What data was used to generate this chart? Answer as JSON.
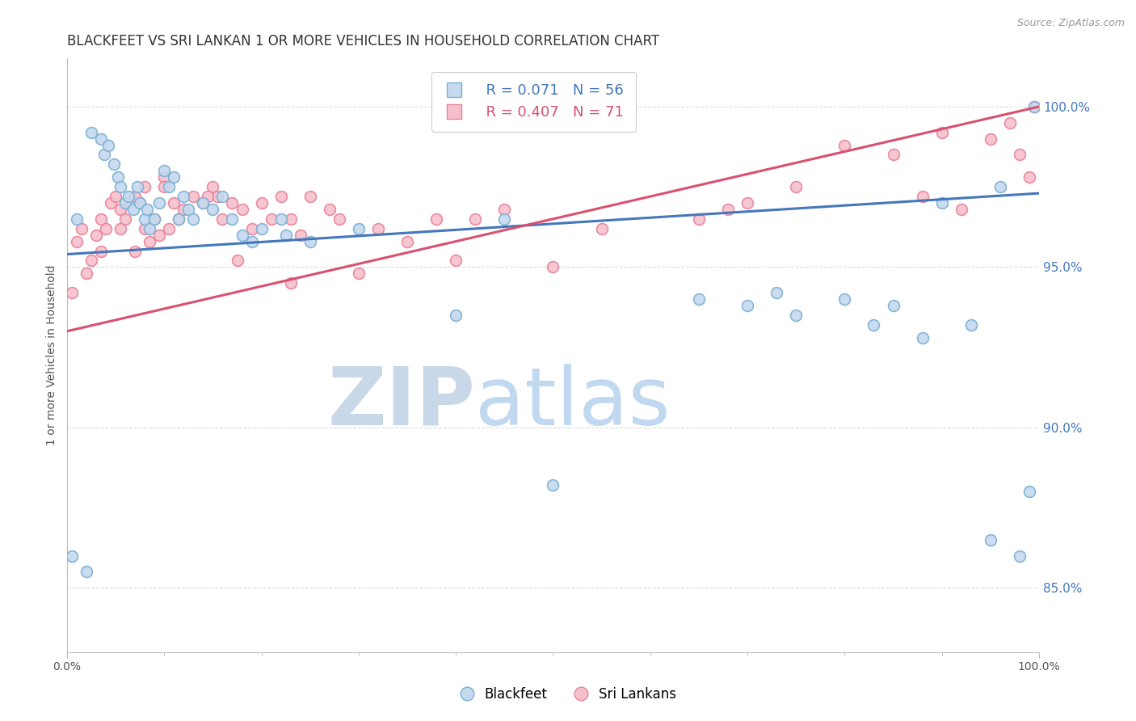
{
  "title": "BLACKFEET VS SRI LANKAN 1 OR MORE VEHICLES IN HOUSEHOLD CORRELATION CHART",
  "source_text": "Source: ZipAtlas.com",
  "ylabel": "1 or more Vehicles in Household",
  "xlabel": "",
  "legend_labels": [
    "Blackfeet",
    "Sri Lankans"
  ],
  "blue_color": "#c5d9ef",
  "pink_color": "#f5c0cc",
  "blue_edge_color": "#7bafd4",
  "pink_edge_color": "#e8829a",
  "blue_line_color": "#4477bb",
  "pink_line_color": "#d95070",
  "blue_R": 0.071,
  "blue_N": 56,
  "pink_R": 0.407,
  "pink_N": 71,
  "blue_scatter_x": [
    1.0,
    2.5,
    3.5,
    3.8,
    4.2,
    4.8,
    5.2,
    5.5,
    6.0,
    6.3,
    6.8,
    7.2,
    7.5,
    8.0,
    8.2,
    8.5,
    9.0,
    9.5,
    10.0,
    10.5,
    11.0,
    11.5,
    12.0,
    12.5,
    13.0,
    14.0,
    15.0,
    16.0,
    17.0,
    18.0,
    19.0,
    20.0,
    22.0,
    22.5,
    25.0,
    30.0,
    40.0,
    45.0,
    50.0,
    65.0,
    70.0,
    73.0,
    75.0,
    80.0,
    83.0,
    85.0,
    88.0,
    90.0,
    93.0,
    95.0,
    96.0,
    98.0,
    99.0,
    99.5,
    0.5,
    2.0
  ],
  "blue_scatter_y": [
    96.5,
    99.2,
    99.0,
    98.5,
    98.8,
    98.2,
    97.8,
    97.5,
    97.0,
    97.2,
    96.8,
    97.5,
    97.0,
    96.5,
    96.8,
    96.2,
    96.5,
    97.0,
    98.0,
    97.5,
    97.8,
    96.5,
    97.2,
    96.8,
    96.5,
    97.0,
    96.8,
    97.2,
    96.5,
    96.0,
    95.8,
    96.2,
    96.5,
    96.0,
    95.8,
    96.2,
    93.5,
    96.5,
    88.2,
    94.0,
    93.8,
    94.2,
    93.5,
    94.0,
    93.2,
    93.8,
    92.8,
    97.0,
    93.2,
    86.5,
    97.5,
    86.0,
    88.0,
    100.0,
    86.0,
    85.5
  ],
  "pink_scatter_x": [
    0.5,
    1.0,
    1.5,
    2.0,
    2.5,
    3.0,
    3.5,
    4.0,
    4.5,
    5.0,
    5.5,
    6.0,
    6.5,
    7.0,
    7.5,
    8.0,
    8.5,
    9.0,
    9.5,
    10.0,
    10.5,
    11.0,
    11.5,
    12.0,
    13.0,
    14.0,
    15.0,
    15.5,
    16.0,
    17.0,
    18.0,
    19.0,
    20.0,
    21.0,
    22.0,
    23.0,
    24.0,
    25.0,
    27.0,
    28.0,
    30.0,
    32.0,
    35.0,
    38.0,
    40.0,
    42.0,
    45.0,
    50.0,
    55.0,
    65.0,
    68.0,
    70.0,
    75.0,
    80.0,
    85.0,
    88.0,
    90.0,
    92.0,
    95.0,
    97.0,
    98.0,
    99.0,
    99.5,
    3.5,
    5.5,
    7.0,
    8.0,
    10.0,
    14.5,
    17.5,
    23.0
  ],
  "pink_scatter_y": [
    94.2,
    95.8,
    96.2,
    94.8,
    95.2,
    96.0,
    96.5,
    96.2,
    97.0,
    97.2,
    96.8,
    96.5,
    97.0,
    95.5,
    97.0,
    96.2,
    95.8,
    96.5,
    96.0,
    97.8,
    96.2,
    97.0,
    96.5,
    96.8,
    97.2,
    97.0,
    97.5,
    97.2,
    96.5,
    97.0,
    96.8,
    96.2,
    97.0,
    96.5,
    97.2,
    96.5,
    96.0,
    97.2,
    96.8,
    96.5,
    94.8,
    96.2,
    95.8,
    96.5,
    95.2,
    96.5,
    96.8,
    95.0,
    96.2,
    96.5,
    96.8,
    97.0,
    97.5,
    98.8,
    98.5,
    97.2,
    99.2,
    96.8,
    99.0,
    99.5,
    98.5,
    97.8,
    100.0,
    95.5,
    96.2,
    97.2,
    97.5,
    97.5,
    97.2,
    95.2,
    94.5
  ],
  "blue_line_x0": 0.0,
  "blue_line_x1": 100.0,
  "blue_line_y0": 95.4,
  "blue_line_y1": 97.3,
  "pink_line_x0": 0.0,
  "pink_line_x1": 100.0,
  "pink_line_y0": 93.0,
  "pink_line_y1": 100.0,
  "xlim": [
    0,
    100
  ],
  "ylim": [
    83.0,
    101.5
  ],
  "yticks_right": [
    85.0,
    90.0,
    95.0,
    100.0
  ],
  "xtick_labels_show": [
    "0.0%",
    "100.0%"
  ],
  "xtick_positions_show": [
    0,
    100
  ],
  "xtick_positions_minor": [
    10,
    20,
    30,
    40,
    50,
    60,
    70,
    80,
    90
  ],
  "background_color": "#ffffff",
  "grid_color": "#dddddd",
  "watermark_zip": "ZIP",
  "watermark_atlas": "atlas",
  "watermark_zip_color": "#c8d8e8",
  "watermark_atlas_color": "#c0d8f0",
  "title_fontsize": 12,
  "axis_label_fontsize": 10,
  "tick_fontsize": 10,
  "legend_fontsize": 12,
  "marker_size": 100
}
